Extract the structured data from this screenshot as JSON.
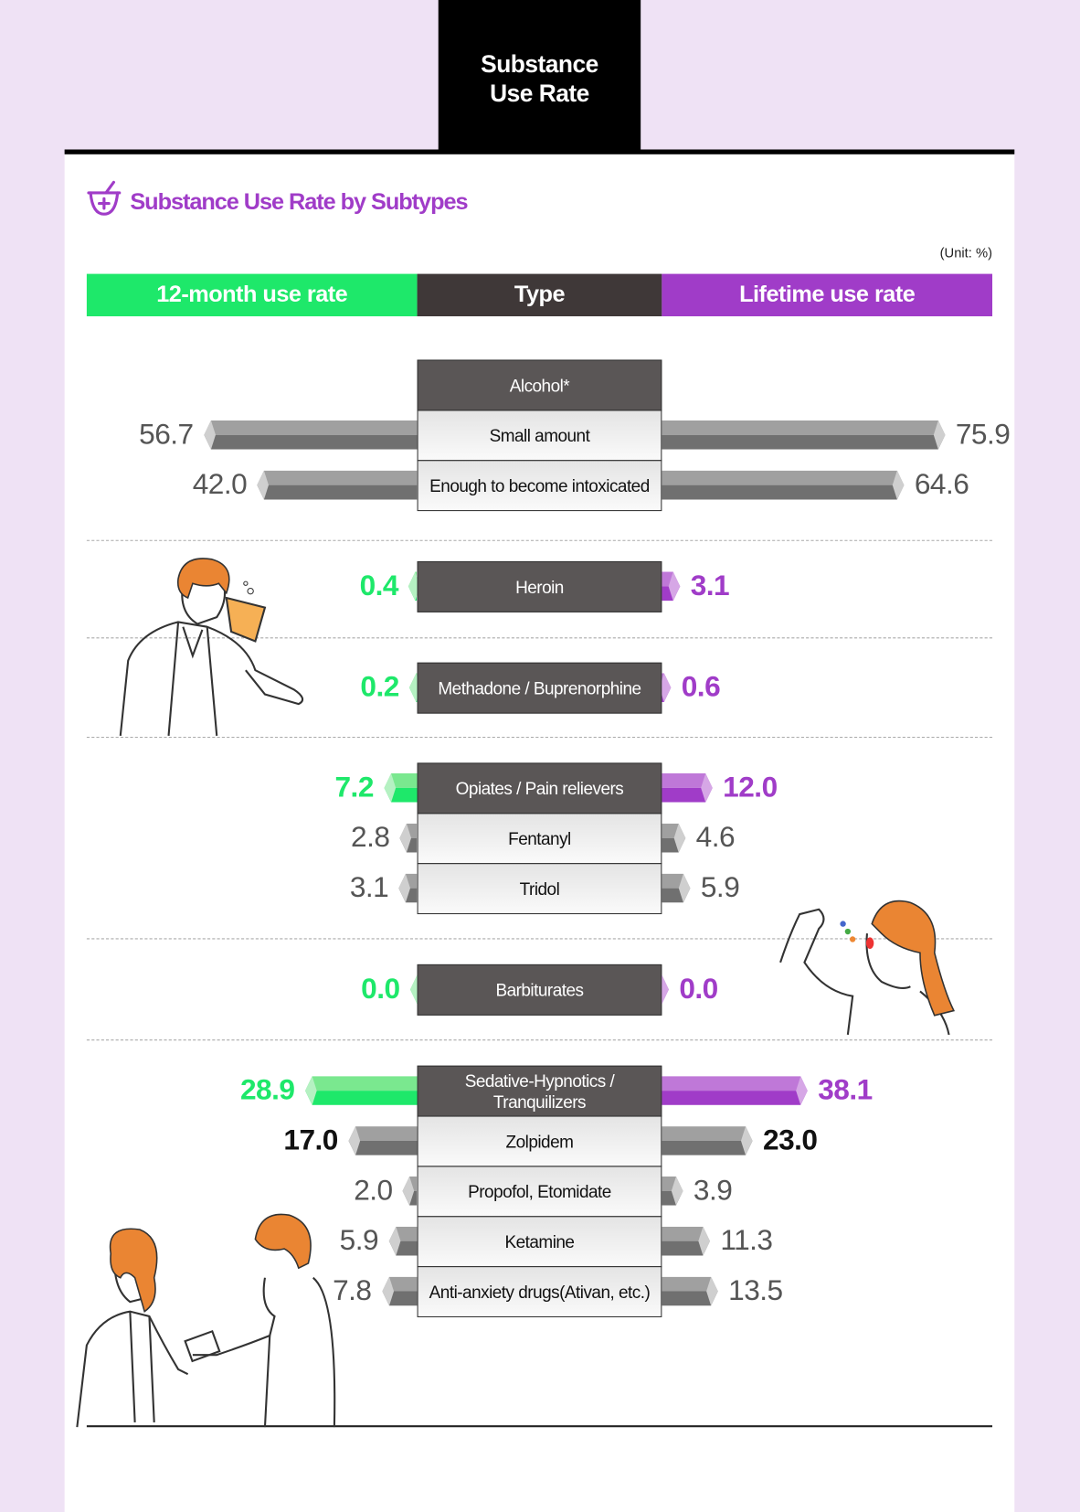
{
  "tab_title": "Substance Use Rate",
  "section_title": "Substance Use Rate by Subtypes",
  "unit": "(Unit: %)",
  "colors": {
    "twelve_month": "#1ee86a",
    "type": "#3f3838",
    "lifetime": "#a03cc8",
    "sub_bar": "#707070"
  },
  "chart_data": {
    "type": "bar",
    "orientation": "diverging-horizontal",
    "unit": "%",
    "headers": {
      "left": "12-month use rate",
      "center": "Type",
      "right": "Lifetime use rate"
    },
    "groups": [
      {
        "category": "Alcohol*",
        "twelve_month": null,
        "lifetime": null,
        "subtypes": [
          {
            "label": "Small amount",
            "twelve_month": 56.7,
            "lifetime": 75.9
          },
          {
            "label": "Enough to become intoxicated",
            "twelve_month": 42.0,
            "lifetime": 64.6
          }
        ]
      },
      {
        "category": "Heroin",
        "twelve_month": 0.4,
        "lifetime": 3.1,
        "subtypes": []
      },
      {
        "category": "Methadone / Buprenorphine",
        "twelve_month": 0.2,
        "lifetime": 0.6,
        "subtypes": []
      },
      {
        "category": "Opiates / Pain relievers",
        "twelve_month": 7.2,
        "lifetime": 12.0,
        "subtypes": [
          {
            "label": "Fentanyl",
            "twelve_month": 2.8,
            "lifetime": 4.6
          },
          {
            "label": "Tridol",
            "twelve_month": 3.1,
            "lifetime": 5.9
          }
        ]
      },
      {
        "category": "Barbiturates",
        "twelve_month": 0.0,
        "lifetime": 0.0,
        "subtypes": []
      },
      {
        "category": "Sedative-Hypnotics / Tranquilizers",
        "twelve_month": 28.9,
        "lifetime": 38.1,
        "subtypes": [
          {
            "label": "Zolpidem",
            "twelve_month": 17.0,
            "lifetime": 23.0,
            "emphasis": true
          },
          {
            "label": "Propofol, Etomidate",
            "twelve_month": 2.0,
            "lifetime": 3.9
          },
          {
            "label": "Ketamine",
            "twelve_month": 5.9,
            "lifetime": 11.3
          },
          {
            "label": "Anti-anxiety drugs(Ativan, etc.)",
            "twelve_month": 7.8,
            "lifetime": 13.5
          }
        ]
      }
    ]
  }
}
